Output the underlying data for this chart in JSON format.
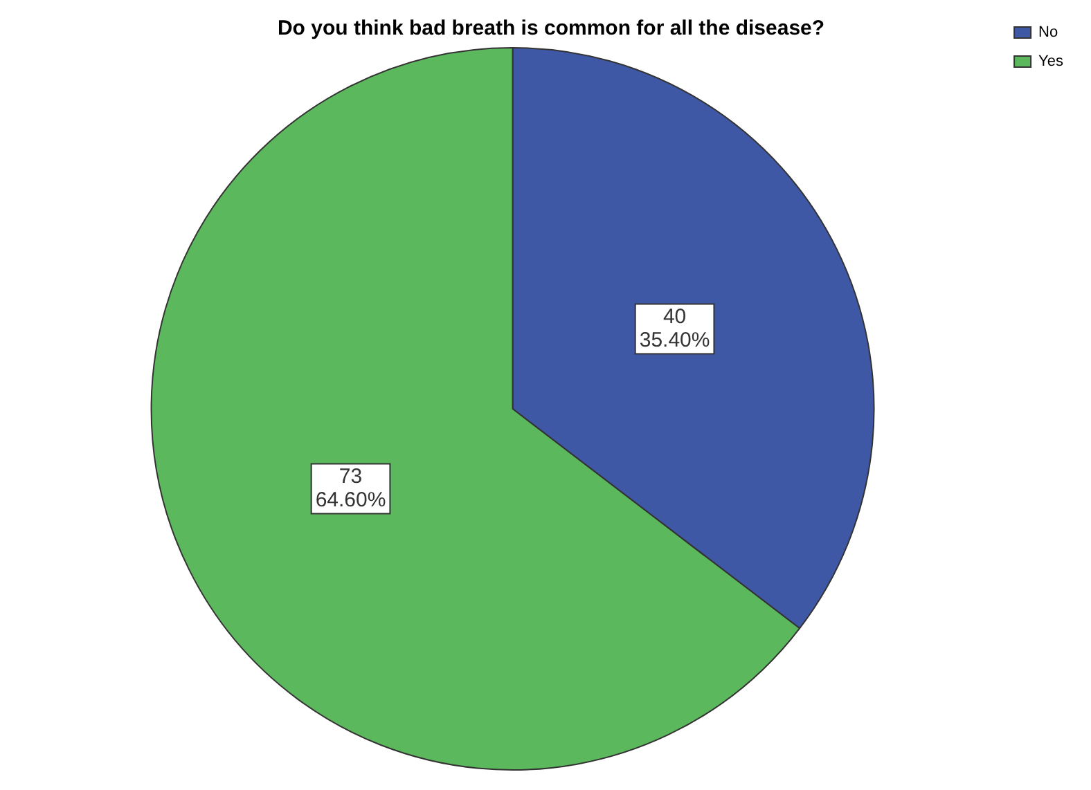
{
  "chart_data": {
    "type": "pie",
    "title": "Do you think bad breath is common for all the disease?",
    "categories": [
      "No",
      "Yes"
    ],
    "values": [
      40,
      73
    ],
    "colors": [
      "#3f58a6",
      "#5cb85c"
    ],
    "value_labels": [
      "40\n35.40%",
      "73\n64.60%"
    ],
    "legend": "top right"
  }
}
